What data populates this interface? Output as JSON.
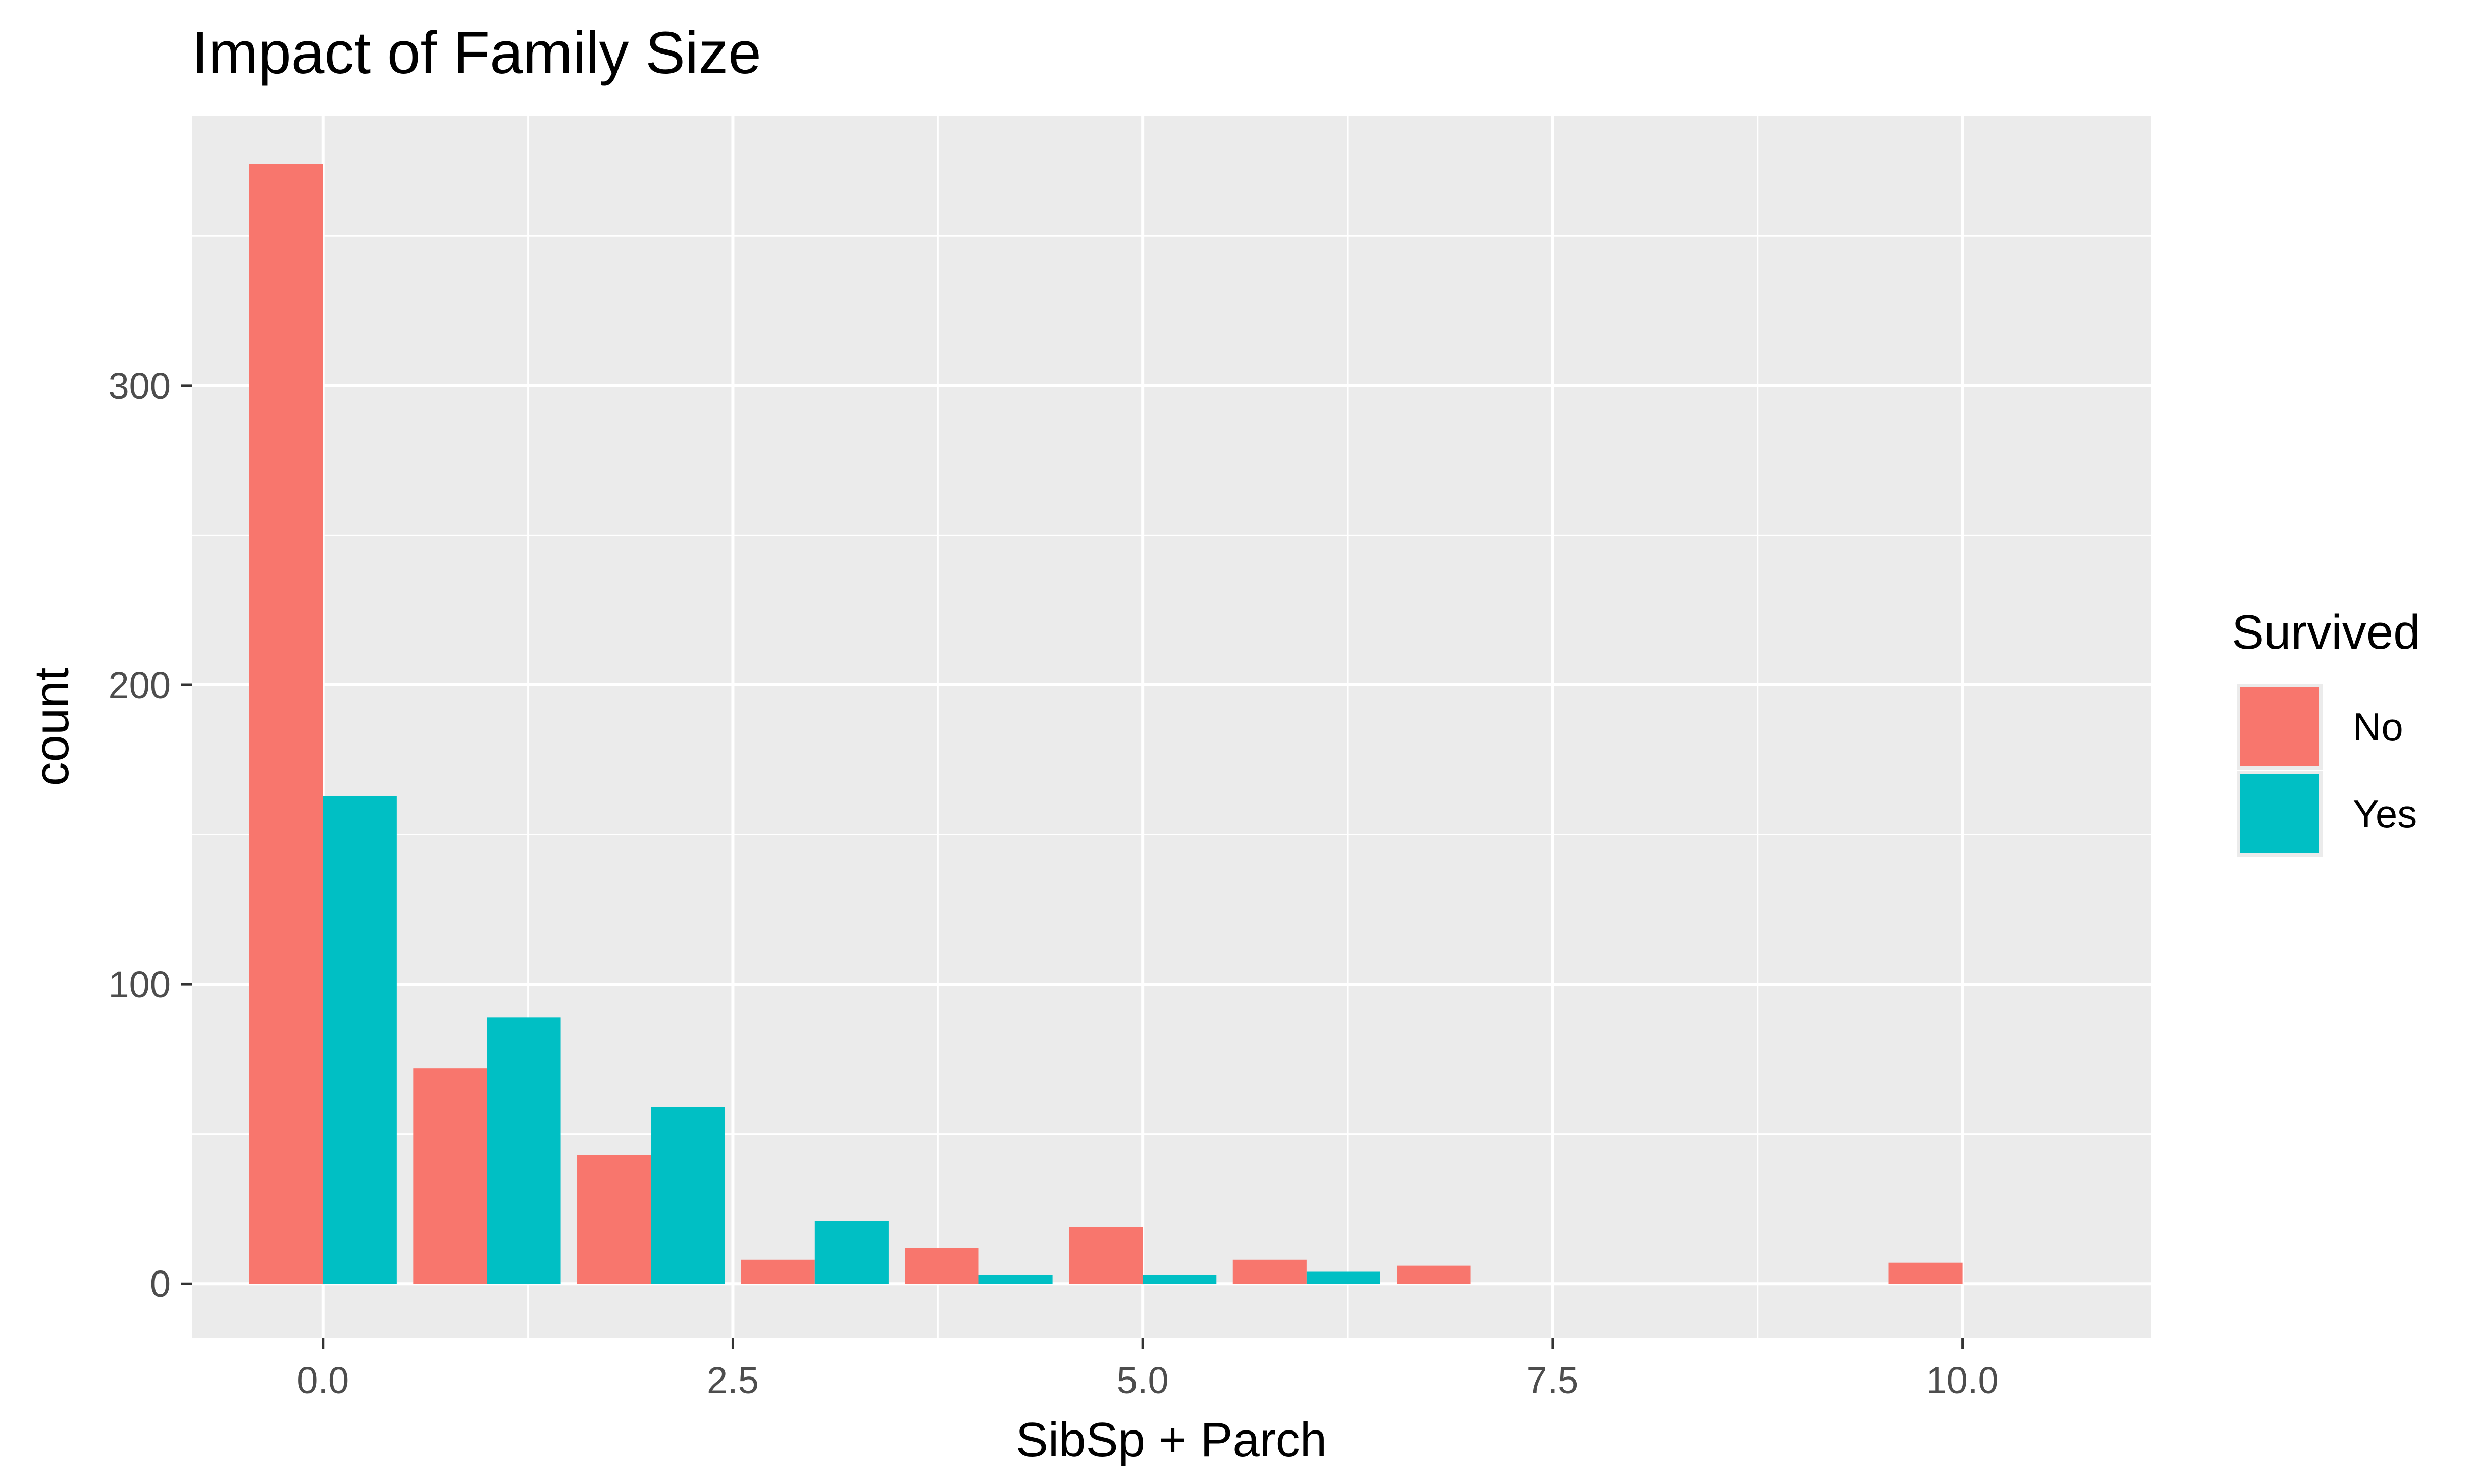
{
  "chart_data": {
    "type": "bar",
    "title": "Impact of Family Size",
    "xlabel": "SibSp + Parch",
    "ylabel": "count",
    "xlim": [
      -0.8,
      11.15
    ],
    "ylim": [
      -18,
      390
    ],
    "x_ticks": [
      {
        "value": 0,
        "label": "0.0"
      },
      {
        "value": 2.5,
        "label": "2.5"
      },
      {
        "value": 5,
        "label": "5.0"
      },
      {
        "value": 7.5,
        "label": "7.5"
      },
      {
        "value": 10,
        "label": "10.0"
      }
    ],
    "y_ticks": [
      {
        "value": 0,
        "label": "0"
      },
      {
        "value": 100,
        "label": "100"
      },
      {
        "value": 200,
        "label": "200"
      },
      {
        "value": 300,
        "label": "300"
      }
    ],
    "grid": true,
    "legend": {
      "title": "Survived",
      "position": "right"
    },
    "x": [
      0,
      1,
      2,
      3,
      4,
      5,
      6,
      7,
      10
    ],
    "series": [
      {
        "name": "No",
        "color": "#F8766D",
        "values": [
          374,
          72,
          43,
          8,
          12,
          19,
          8,
          6,
          7
        ]
      },
      {
        "name": "Yes",
        "color": "#00BFC4",
        "values": [
          163,
          89,
          59,
          21,
          3,
          3,
          4,
          0,
          0
        ]
      }
    ]
  }
}
